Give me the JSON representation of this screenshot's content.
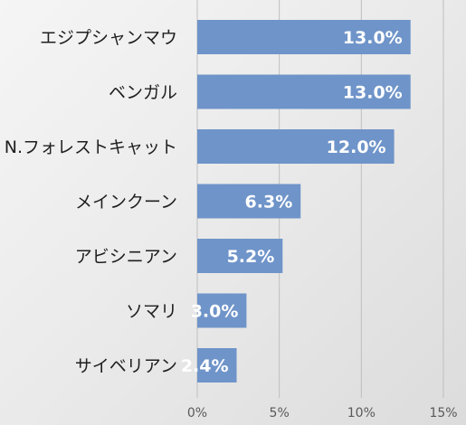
{
  "chart_data": {
    "type": "bar",
    "orientation": "horizontal",
    "categories": [
      "エジプシャンマウ",
      "ベンガル",
      "N.フォレストキャット",
      "メインクーン",
      "アビシニアン",
      "ソマリ",
      "サイベリアン"
    ],
    "values": [
      13.0,
      13.0,
      12.0,
      6.3,
      5.2,
      3.0,
      2.4
    ],
    "value_labels": [
      "13.0%",
      "13.0%",
      "12.0%",
      "6.3%",
      "5.2%",
      "3.0%",
      "2.4%"
    ],
    "xlim": [
      0,
      15
    ],
    "xticks": [
      0,
      5,
      10,
      15
    ],
    "xtick_labels": [
      "0%",
      "5%",
      "10%",
      "15%"
    ],
    "grid": true,
    "legend": false,
    "title": "",
    "xlabel": "",
    "ylabel": "",
    "colors": {
      "bar": "#6f94c9",
      "value_text": "#ffffff",
      "category_text": "#1f1f1f",
      "tick_text": "#595959",
      "grid": "#bfbfbf"
    }
  }
}
